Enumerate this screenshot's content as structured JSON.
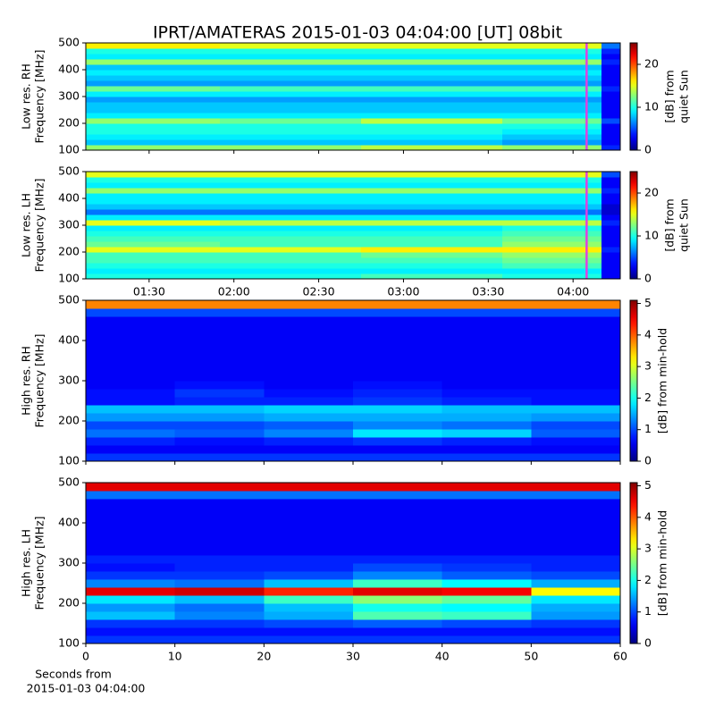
{
  "chart_data": [
    {
      "type": "heatmap",
      "title": "IPRT/AMATERAS 2015-01-03 04:04:00 [UT]   08bit",
      "ylabel": [
        "Low res. RH",
        "Frequency [MHz]"
      ],
      "colorbar_label": [
        "[dB] from",
        "quiet Sun"
      ],
      "colormap": "jet",
      "zlim": [
        0,
        25
      ],
      "zticks": [
        0,
        10,
        20
      ],
      "xlim": [
        67.6,
        256.7
      ],
      "ylim": [
        100,
        500
      ],
      "yticks": [
        100,
        200,
        300,
        400,
        500
      ],
      "marker_x": 244.8,
      "marker_color": "#e040e0",
      "xbins": [
        67.6,
        115,
        165,
        215,
        250,
        256.7
      ],
      "ybins": [
        100,
        120,
        140,
        160,
        180,
        200,
        220,
        240,
        260,
        280,
        300,
        320,
        340,
        360,
        380,
        400,
        420,
        440,
        460,
        480,
        500
      ],
      "z": [
        [
          13,
          13,
          14,
          13,
          4
        ],
        [
          8,
          8,
          8,
          7,
          3
        ],
        [
          9,
          9,
          9,
          8,
          3
        ],
        [
          10,
          10,
          10,
          9,
          3
        ],
        [
          10,
          10,
          10,
          10,
          3
        ],
        [
          13,
          12,
          14,
          12,
          5
        ],
        [
          9,
          9,
          9,
          9,
          3
        ],
        [
          8,
          8,
          8,
          8,
          3
        ],
        [
          8,
          8,
          8,
          8,
          3
        ],
        [
          7,
          7,
          7,
          7,
          3
        ],
        [
          9,
          9,
          9,
          9,
          3
        ],
        [
          12,
          11,
          11,
          11,
          4
        ],
        [
          7,
          7,
          7,
          7,
          3
        ],
        [
          8,
          8,
          8,
          8,
          3
        ],
        [
          9,
          9,
          9,
          9,
          3
        ],
        [
          8,
          8,
          8,
          8,
          3
        ],
        [
          13,
          13,
          13,
          13,
          4
        ],
        [
          9,
          9,
          9,
          9,
          3
        ],
        [
          10,
          10,
          10,
          10,
          4
        ],
        [
          16,
          15,
          15,
          15,
          6
        ]
      ]
    },
    {
      "type": "heatmap",
      "ylabel": [
        "Low res. LH",
        "Frequency [MHz]"
      ],
      "colorbar_label": [
        "[dB] from",
        "quiet Sun"
      ],
      "colormap": "jet",
      "zlim": [
        0,
        25
      ],
      "zticks": [
        0,
        10,
        20
      ],
      "xlim": [
        67.6,
        256.7
      ],
      "xticks": [
        {
          "value": 90,
          "label": "01:30"
        },
        {
          "value": 120,
          "label": "02:00"
        },
        {
          "value": 150,
          "label": "02:30"
        },
        {
          "value": 180,
          "label": "03:00"
        },
        {
          "value": 210,
          "label": "03:30"
        },
        {
          "value": 240,
          "label": "04:00"
        }
      ],
      "ylim": [
        100,
        500
      ],
      "yticks": [
        100,
        200,
        300,
        400,
        500
      ],
      "marker_x": 244.8,
      "marker_color": "#e040e0",
      "xbins": [
        67.6,
        115,
        165,
        215,
        250,
        256.7
      ],
      "ybins": [
        100,
        120,
        140,
        160,
        180,
        200,
        220,
        240,
        260,
        280,
        300,
        320,
        340,
        360,
        380,
        400,
        420,
        440,
        460,
        480,
        500
      ],
      "z": [
        [
          10,
          10,
          11,
          10,
          3
        ],
        [
          9,
          9,
          9,
          9,
          3
        ],
        [
          10,
          10,
          10,
          11,
          3
        ],
        [
          11,
          11,
          11,
          12,
          3
        ],
        [
          11,
          11,
          12,
          13,
          3
        ],
        [
          15,
          15,
          16,
          16,
          4
        ],
        [
          12,
          11,
          11,
          13,
          3
        ],
        [
          11,
          11,
          11,
          12,
          3
        ],
        [
          10,
          10,
          10,
          11,
          3
        ],
        [
          9,
          9,
          9,
          10,
          3
        ],
        [
          15,
          14,
          14,
          14,
          4
        ],
        [
          9,
          9,
          9,
          9,
          3
        ],
        [
          6,
          6,
          6,
          6,
          2
        ],
        [
          8,
          8,
          8,
          8,
          2
        ],
        [
          9,
          9,
          9,
          9,
          3
        ],
        [
          9,
          9,
          9,
          9,
          3
        ],
        [
          13,
          13,
          13,
          13,
          4
        ],
        [
          9,
          9,
          9,
          9,
          3
        ],
        [
          10,
          10,
          10,
          10,
          3
        ],
        [
          15,
          15,
          15,
          15,
          5
        ]
      ]
    },
    {
      "type": "heatmap",
      "ylabel": [
        "High res. RH",
        "Frequency [MHz]"
      ],
      "colorbar_label": [
        "[dB] from min-hold"
      ],
      "colormap": "jet",
      "zlim": [
        0,
        5.1
      ],
      "zticks": [
        0,
        1,
        2,
        3,
        4,
        5
      ],
      "xlim": [
        0,
        60
      ],
      "ylim": [
        100,
        500
      ],
      "yticks": [
        100,
        200,
        300,
        400,
        500
      ],
      "xbins": [
        0,
        10,
        20,
        30,
        40,
        50,
        60
      ],
      "ybins": [
        100,
        120,
        140,
        160,
        180,
        200,
        220,
        240,
        260,
        280,
        300,
        320,
        340,
        360,
        380,
        400,
        420,
        440,
        460,
        480,
        500
      ],
      "z": [
        [
          0.9,
          0.9,
          0.9,
          0.9,
          0.9,
          0.9
        ],
        [
          0.6,
          0.6,
          0.6,
          0.6,
          0.6,
          0.6
        ],
        [
          0.8,
          0.7,
          0.8,
          0.9,
          0.8,
          0.7
        ],
        [
          1.2,
          1.1,
          1.3,
          1.8,
          1.7,
          1.1
        ],
        [
          1.0,
          1.0,
          1.1,
          1.3,
          1.2,
          1.0
        ],
        [
          1.4,
          1.4,
          1.5,
          1.5,
          1.5,
          1.4
        ],
        [
          1.6,
          1.6,
          1.7,
          1.7,
          1.6,
          1.6
        ],
        [
          0.7,
          0.8,
          0.8,
          0.9,
          0.8,
          0.7
        ],
        [
          0.7,
          0.9,
          0.7,
          0.8,
          0.7,
          0.7
        ],
        [
          0.6,
          0.7,
          0.6,
          0.7,
          0.6,
          0.6
        ],
        [
          0.6,
          0.6,
          0.6,
          0.6,
          0.6,
          0.6
        ],
        [
          0.6,
          0.6,
          0.6,
          0.6,
          0.6,
          0.6
        ],
        [
          0.6,
          0.6,
          0.6,
          0.6,
          0.6,
          0.6
        ],
        [
          0.6,
          0.6,
          0.6,
          0.6,
          0.6,
          0.6
        ],
        [
          0.6,
          0.6,
          0.6,
          0.6,
          0.6,
          0.6
        ],
        [
          0.6,
          0.6,
          0.6,
          0.6,
          0.6,
          0.6
        ],
        [
          0.6,
          0.6,
          0.6,
          0.6,
          0.6,
          0.6
        ],
        [
          0.6,
          0.6,
          0.6,
          0.6,
          0.6,
          0.6
        ],
        [
          1.0,
          1.0,
          1.0,
          1.0,
          1.0,
          1.0
        ],
        [
          3.8,
          3.8,
          3.8,
          3.8,
          3.8,
          3.8
        ]
      ]
    },
    {
      "type": "heatmap",
      "ylabel": [
        "High res. LH",
        "Frequency [MHz]"
      ],
      "colorbar_label": [
        "[dB] from min-hold"
      ],
      "xlabel": [
        "Seconds from",
        "2015-01-03 04:04:00"
      ],
      "colormap": "jet",
      "zlim": [
        0,
        5.1
      ],
      "zticks": [
        0,
        1,
        2,
        3,
        4,
        5
      ],
      "xlim": [
        0,
        60
      ],
      "xticks": [
        0,
        10,
        20,
        30,
        40,
        50,
        60
      ],
      "ylim": [
        100,
        500
      ],
      "yticks": [
        100,
        200,
        300,
        400,
        500
      ],
      "xbins": [
        0,
        10,
        20,
        30,
        40,
        50,
        60
      ],
      "ybins": [
        100,
        120,
        140,
        160,
        180,
        200,
        220,
        240,
        260,
        280,
        300,
        320,
        340,
        360,
        380,
        400,
        420,
        440,
        460,
        480,
        500
      ],
      "z": [
        [
          0.9,
          0.9,
          0.9,
          0.9,
          0.9,
          0.9
        ],
        [
          0.7,
          0.7,
          0.7,
          0.7,
          0.7,
          0.7
        ],
        [
          0.9,
          0.9,
          1.0,
          1.1,
          1.0,
          0.9
        ],
        [
          1.6,
          1.3,
          1.5,
          2.3,
          2.2,
          1.4
        ],
        [
          1.4,
          1.2,
          1.6,
          2.0,
          1.9,
          1.5
        ],
        [
          1.8,
          1.6,
          2.2,
          2.6,
          2.4,
          1.8
        ],
        [
          4.6,
          4.7,
          4.3,
          4.6,
          4.5,
          3.2
        ],
        [
          1.3,
          1.2,
          1.6,
          2.2,
          1.9,
          1.5
        ],
        [
          0.9,
          0.9,
          1.0,
          1.3,
          1.1,
          1.0
        ],
        [
          0.7,
          0.8,
          0.8,
          1.0,
          0.9,
          0.8
        ],
        [
          0.8,
          0.8,
          0.8,
          0.8,
          0.8,
          0.8
        ],
        [
          0.6,
          0.6,
          0.6,
          0.6,
          0.6,
          0.6
        ],
        [
          0.6,
          0.6,
          0.6,
          0.6,
          0.6,
          0.6
        ],
        [
          0.6,
          0.6,
          0.6,
          0.6,
          0.6,
          0.6
        ],
        [
          0.6,
          0.6,
          0.6,
          0.6,
          0.6,
          0.6
        ],
        [
          0.6,
          0.6,
          0.6,
          0.6,
          0.6,
          0.6
        ],
        [
          0.6,
          0.6,
          0.6,
          0.6,
          0.6,
          0.6
        ],
        [
          0.6,
          0.6,
          0.6,
          0.6,
          0.6,
          0.6
        ],
        [
          1.2,
          1.2,
          1.2,
          1.2,
          1.2,
          1.2
        ],
        [
          4.6,
          4.6,
          4.6,
          4.6,
          4.6,
          4.6
        ]
      ]
    }
  ]
}
